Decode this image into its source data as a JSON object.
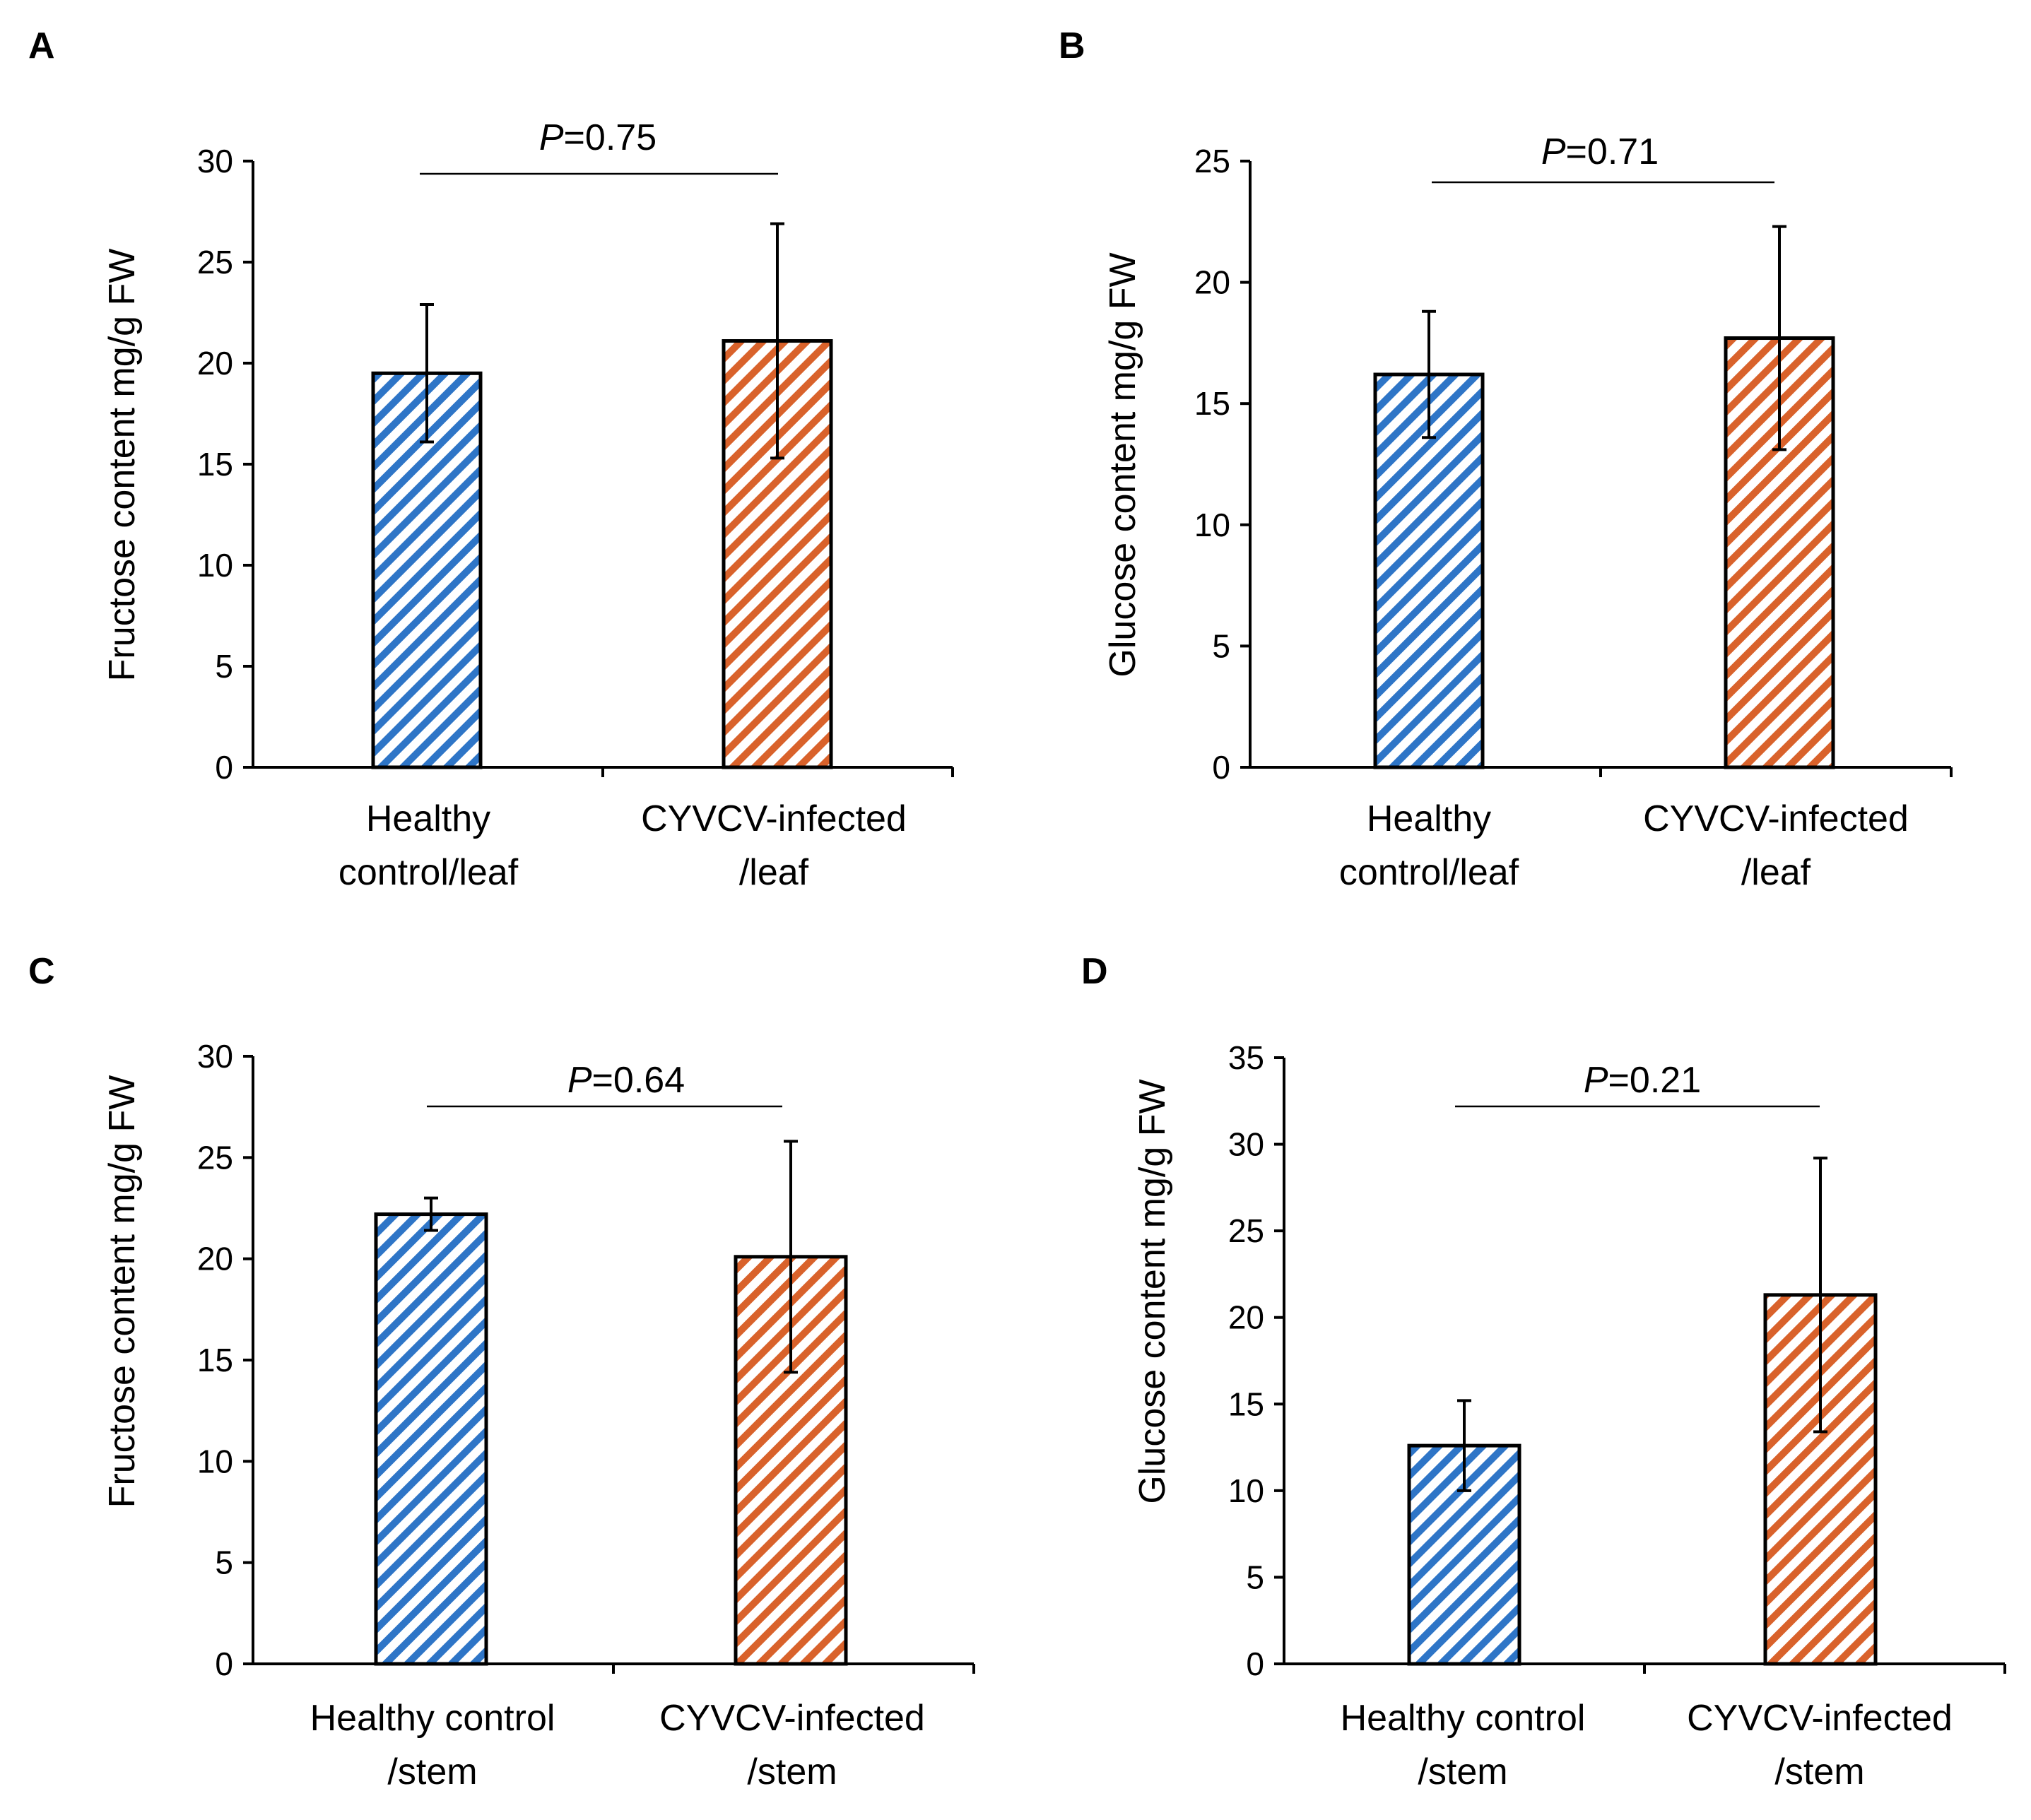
{
  "figure": {
    "colors": {
      "healthy": "#2e75c7",
      "infected": "#d9622b",
      "axis": "#000000"
    }
  },
  "chart_data": [
    {
      "panel": "A",
      "type": "bar",
      "title": "",
      "ylabel": "Fructose content  mg/g FW",
      "xlabel": "",
      "ylim": [
        0,
        30
      ],
      "yticks": [
        0,
        5,
        10,
        15,
        20,
        25,
        30
      ],
      "grid": false,
      "categories": [
        [
          "Healthy",
          "control/leaf"
        ],
        [
          "CYVCV-infected",
          "/leaf"
        ]
      ],
      "values": [
        19.5,
        21.1
      ],
      "errors": [
        3.4,
        5.8
      ],
      "series_colors": [
        "#2e75c7",
        "#d9622b"
      ],
      "pattern": "diagonal-stripes",
      "p_label": "P",
      "p_value": "=0.75"
    },
    {
      "panel": "B",
      "type": "bar",
      "title": "",
      "ylabel": "Glucose content  mg/g FW",
      "xlabel": "",
      "ylim": [
        0,
        25
      ],
      "yticks": [
        0,
        5,
        10,
        15,
        20,
        25
      ],
      "grid": false,
      "categories": [
        [
          "Healthy",
          "control/leaf"
        ],
        [
          "CYVCV-infected",
          "/leaf"
        ]
      ],
      "values": [
        16.2,
        17.7
      ],
      "errors": [
        2.6,
        4.6
      ],
      "series_colors": [
        "#2e75c7",
        "#d9622b"
      ],
      "pattern": "diagonal-stripes",
      "p_label": "P",
      "p_value": "=0.71"
    },
    {
      "panel": "C",
      "type": "bar",
      "title": "",
      "ylabel": "Fructose content       mg/g FW",
      "xlabel": "",
      "ylim": [
        0,
        30
      ],
      "yticks": [
        0,
        5,
        10,
        15,
        20,
        25,
        30
      ],
      "grid": false,
      "categories": [
        [
          "Healthy control",
          "/stem"
        ],
        [
          "CYVCV-infected",
          "/stem"
        ]
      ],
      "values": [
        22.2,
        20.1
      ],
      "errors": [
        0.8,
        5.7
      ],
      "series_colors": [
        "#2e75c7",
        "#d9622b"
      ],
      "pattern": "diagonal-stripes",
      "p_label": "P",
      "p_value": "=0.64"
    },
    {
      "panel": "D",
      "type": "bar",
      "title": "",
      "ylabel": "Glucose content      mg/g FW",
      "xlabel": "",
      "ylim": [
        0,
        35
      ],
      "yticks": [
        0,
        5,
        10,
        15,
        20,
        25,
        30,
        35
      ],
      "grid": false,
      "categories": [
        [
          "Healthy control",
          "/stem"
        ],
        [
          "CYVCV-infected",
          "/stem"
        ]
      ],
      "values": [
        12.6,
        21.3
      ],
      "errors": [
        2.6,
        7.9
      ],
      "series_colors": [
        "#2e75c7",
        "#d9622b"
      ],
      "pattern": "diagonal-stripes",
      "p_label": "P",
      "p_value": "=0.21"
    }
  ]
}
